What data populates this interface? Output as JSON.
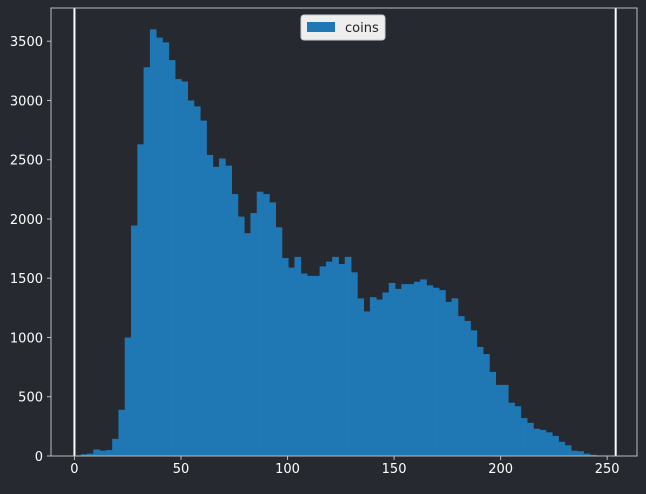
{
  "colors": {
    "background": "#262930",
    "bar": "#1f77b4",
    "axes": "#bdbdbd",
    "text": "#ffffff",
    "marker_line": "#ffffff",
    "legend_bg": "#eeeeee"
  },
  "chart_data": {
    "type": "bar",
    "title": "",
    "xlabel": "",
    "ylabel": "",
    "xlim": [
      -11,
      264
    ],
    "ylim": [
      0,
      3780
    ],
    "xticks": [
      0,
      50,
      100,
      150,
      200,
      250
    ],
    "yticks": [
      0,
      500,
      1000,
      1500,
      2000,
      2500,
      3000,
      3500
    ],
    "grid": false,
    "legend_position": "top-center",
    "series": [
      {
        "name": "coins",
        "bin_width": 2.95,
        "bin_start": 0,
        "values": [
          5,
          15,
          20,
          55,
          45,
          50,
          145,
          390,
          1000,
          1945,
          2630,
          3280,
          3600,
          3530,
          3490,
          3340,
          3180,
          3160,
          3000,
          2950,
          2830,
          2540,
          2440,
          2510,
          2450,
          2210,
          2020,
          1880,
          2050,
          2230,
          2210,
          2140,
          1930,
          1670,
          1590,
          1680,
          1540,
          1520,
          1520,
          1600,
          1640,
          1680,
          1620,
          1680,
          1550,
          1330,
          1220,
          1340,
          1320,
          1380,
          1460,
          1410,
          1450,
          1450,
          1470,
          1490,
          1440,
          1420,
          1400,
          1300,
          1330,
          1180,
          1140,
          1060,
          920,
          860,
          710,
          600,
          600,
          450,
          420,
          320,
          280,
          230,
          220,
          200,
          170,
          120,
          90,
          45,
          40,
          20,
          10,
          5
        ]
      }
    ],
    "vlines": [
      0,
      254
    ]
  }
}
